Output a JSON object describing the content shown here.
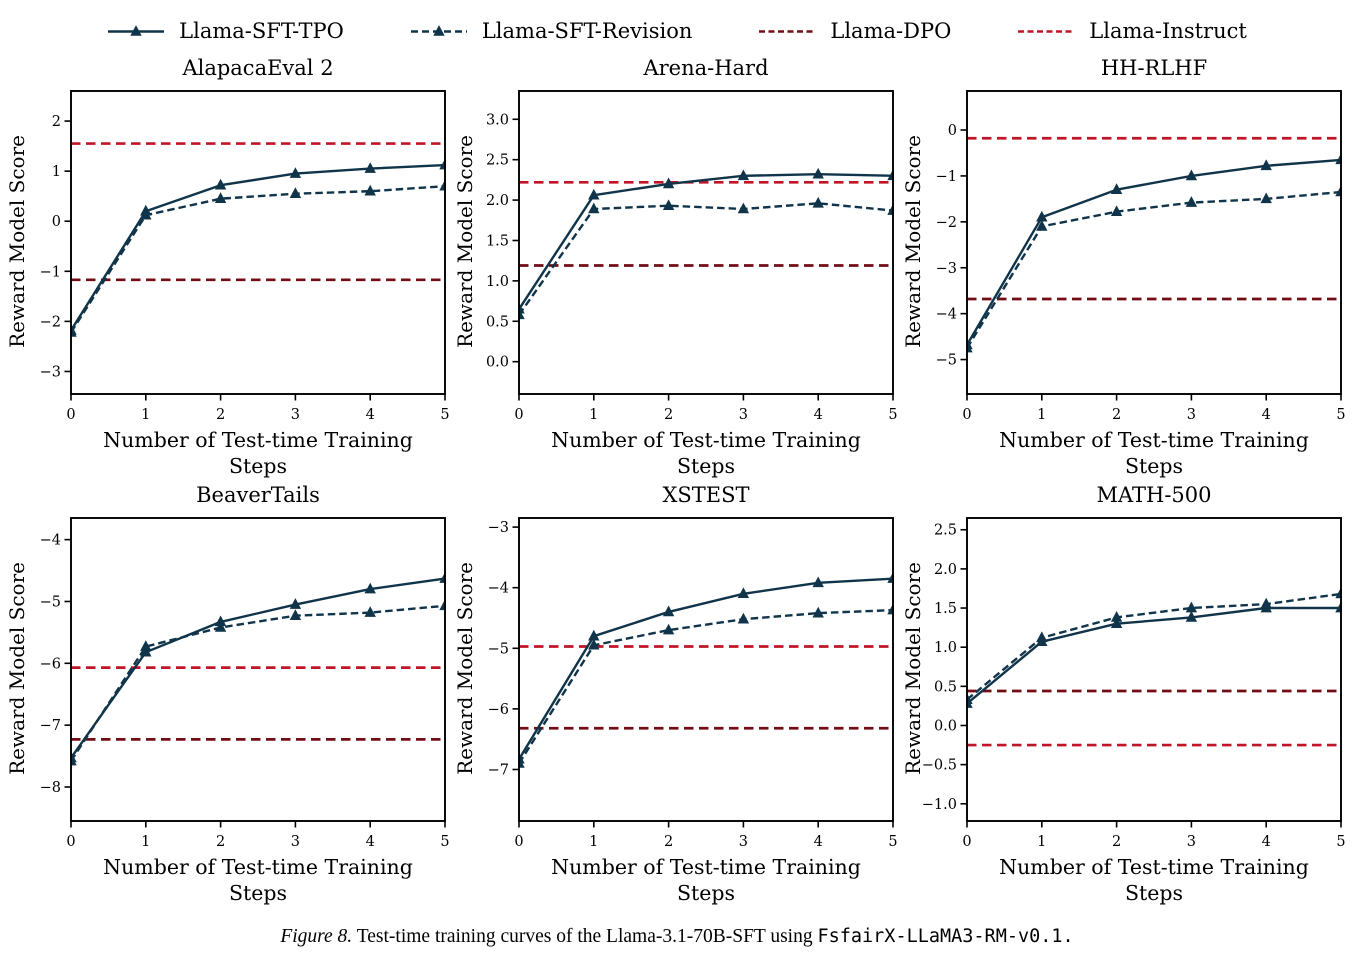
{
  "colors": {
    "navy": "#103449",
    "crimson": "#c01527",
    "maroon": "#730d15",
    "axis": "#000000",
    "background": "#ffffff"
  },
  "legend": {
    "items": [
      {
        "label": "Llama-SFT-TPO",
        "color": "navy",
        "dash": "solid",
        "marker": "triangle-up"
      },
      {
        "label": "Llama-SFT-Revision",
        "color": "navy",
        "dash": "dashed",
        "marker": "triangle-up"
      },
      {
        "label": "Llama-DPO",
        "color": "maroon",
        "dash": "dashed",
        "marker": "none"
      },
      {
        "label": "Llama-Instruct",
        "color": "crimson",
        "dash": "dashed",
        "marker": "none"
      }
    ]
  },
  "caption": {
    "label": "Figure 8.",
    "text": "Test-time training curves of the Llama-3.1-70B-SFT using",
    "code": "FsfairX-LLaMA3-RM-v0.1."
  },
  "chart_data": [
    {
      "type": "line",
      "title": "AlapacaEval 2",
      "xlabel": "Number of Test-time Training Steps",
      "ylabel": "Reward Model Score",
      "x": [
        0,
        1,
        2,
        3,
        4,
        5
      ],
      "xtick_labels": [
        "0",
        "1",
        "2",
        "3",
        "4",
        "5"
      ],
      "xlim": [
        0,
        5
      ],
      "ylim": [
        -3.45,
        2.6
      ],
      "ytick_vals": [
        2,
        1,
        0,
        -1,
        -2,
        -3
      ],
      "ytick_labels": [
        "2",
        "1",
        "0",
        "−1",
        "−2",
        "−3"
      ],
      "grid": false,
      "series": [
        {
          "name": "Llama-SFT-TPO",
          "color": "navy",
          "dash": "solid",
          "marker": "triangle-up",
          "values": [
            -2.18,
            0.2,
            0.72,
            0.95,
            1.05,
            1.12
          ]
        },
        {
          "name": "Llama-SFT-Revision",
          "color": "navy",
          "dash": "dashed",
          "marker": "triangle-up",
          "values": [
            -2.22,
            0.12,
            0.45,
            0.55,
            0.6,
            0.7
          ]
        }
      ],
      "hlines": [
        {
          "name": "Llama-Instruct",
          "color": "crimson",
          "y": 1.55
        },
        {
          "name": "Llama-DPO",
          "color": "maroon",
          "y": -1.17
        }
      ]
    },
    {
      "type": "line",
      "title": "Arena-Hard",
      "xlabel": "Number of Test-time Training Steps",
      "ylabel": "Reward Model Score",
      "x": [
        0,
        1,
        2,
        3,
        4,
        5
      ],
      "xtick_labels": [
        "0",
        "1",
        "2",
        "3",
        "4",
        "5"
      ],
      "xlim": [
        0,
        5
      ],
      "ylim": [
        -0.4,
        3.35
      ],
      "ytick_vals": [
        3.0,
        2.5,
        2.0,
        1.5,
        1.0,
        0.5,
        0.0
      ],
      "ytick_labels": [
        "3.0",
        "2.5",
        "2.0",
        "1.5",
        "1.0",
        "0.5",
        "0.0"
      ],
      "grid": false,
      "series": [
        {
          "name": "Llama-SFT-TPO",
          "color": "navy",
          "dash": "solid",
          "marker": "triangle-up",
          "values": [
            0.65,
            2.06,
            2.2,
            2.3,
            2.32,
            2.3
          ]
        },
        {
          "name": "Llama-SFT-Revision",
          "color": "navy",
          "dash": "dashed",
          "marker": "triangle-up",
          "values": [
            0.58,
            1.89,
            1.93,
            1.89,
            1.96,
            1.87
          ]
        }
      ],
      "hlines": [
        {
          "name": "Llama-Instruct",
          "color": "crimson",
          "y": 2.22
        },
        {
          "name": "Llama-DPO",
          "color": "maroon",
          "y": 1.19
        }
      ]
    },
    {
      "type": "line",
      "title": "HH-RLHF",
      "xlabel": "Number of Test-time Training Steps",
      "ylabel": "Reward Model Score",
      "x": [
        0,
        1,
        2,
        3,
        4,
        5
      ],
      "xtick_labels": [
        "0",
        "1",
        "2",
        "3",
        "4",
        "5"
      ],
      "xlim": [
        0,
        5
      ],
      "ylim": [
        -5.75,
        0.85
      ],
      "ytick_vals": [
        0,
        -1,
        -2,
        -3,
        -4,
        -5
      ],
      "ytick_labels": [
        "0",
        "−1",
        "−2",
        "−3",
        "−4",
        "−5"
      ],
      "grid": false,
      "series": [
        {
          "name": "Llama-SFT-TPO",
          "color": "navy",
          "dash": "solid",
          "marker": "triangle-up",
          "values": [
            -4.68,
            -1.9,
            -1.3,
            -1.0,
            -0.78,
            -0.65
          ]
        },
        {
          "name": "Llama-SFT-Revision",
          "color": "navy",
          "dash": "dashed",
          "marker": "triangle-up",
          "values": [
            -4.75,
            -2.1,
            -1.78,
            -1.58,
            -1.5,
            -1.35
          ]
        }
      ],
      "hlines": [
        {
          "name": "Llama-Instruct",
          "color": "crimson",
          "y": -0.18
        },
        {
          "name": "Llama-DPO",
          "color": "maroon",
          "y": -3.68
        }
      ]
    },
    {
      "type": "line",
      "title": "BeaverTails",
      "xlabel": "Number of Test-time Training Steps",
      "ylabel": "Reward Model Score",
      "x": [
        0,
        1,
        2,
        3,
        4,
        5
      ],
      "xtick_labels": [
        "0",
        "1",
        "2",
        "3",
        "4",
        "5"
      ],
      "xlim": [
        0,
        5
      ],
      "ylim": [
        -8.55,
        -3.65
      ],
      "ytick_vals": [
        -4,
        -5,
        -6,
        -7,
        -8
      ],
      "ytick_labels": [
        "−4",
        "−5",
        "−6",
        "−7",
        "−8"
      ],
      "grid": false,
      "series": [
        {
          "name": "Llama-SFT-TPO",
          "color": "navy",
          "dash": "solid",
          "marker": "triangle-up",
          "values": [
            -7.53,
            -5.82,
            -5.33,
            -5.05,
            -4.8,
            -4.63
          ]
        },
        {
          "name": "Llama-SFT-Revision",
          "color": "navy",
          "dash": "dashed",
          "marker": "triangle-up",
          "values": [
            -7.58,
            -5.73,
            -5.42,
            -5.23,
            -5.18,
            -5.07
          ]
        }
      ],
      "hlines": [
        {
          "name": "Llama-Instruct",
          "color": "crimson",
          "y": -6.07
        },
        {
          "name": "Llama-DPO",
          "color": "maroon",
          "y": -7.23
        }
      ]
    },
    {
      "type": "line",
      "title": "XSTEST",
      "xlabel": "Number of Test-time Training Steps",
      "ylabel": "Reward Model Score",
      "x": [
        0,
        1,
        2,
        3,
        4,
        5
      ],
      "xtick_labels": [
        "0",
        "1",
        "2",
        "3",
        "4",
        "5"
      ],
      "xlim": [
        0,
        5
      ],
      "ylim": [
        -7.85,
        -2.85
      ],
      "ytick_vals": [
        -3,
        -4,
        -5,
        -6,
        -7
      ],
      "ytick_labels": [
        "−3",
        "−4",
        "−5",
        "−6",
        "−7"
      ],
      "grid": false,
      "series": [
        {
          "name": "Llama-SFT-TPO",
          "color": "navy",
          "dash": "solid",
          "marker": "triangle-up",
          "values": [
            -6.83,
            -4.8,
            -4.4,
            -4.1,
            -3.92,
            -3.85
          ]
        },
        {
          "name": "Llama-SFT-Revision",
          "color": "navy",
          "dash": "dashed",
          "marker": "triangle-up",
          "values": [
            -6.9,
            -4.95,
            -4.7,
            -4.52,
            -4.42,
            -4.37
          ]
        }
      ],
      "hlines": [
        {
          "name": "Llama-Instruct",
          "color": "crimson",
          "y": -4.97
        },
        {
          "name": "Llama-DPO",
          "color": "maroon",
          "y": -6.32
        }
      ]
    },
    {
      "type": "line",
      "title": "MATH-500",
      "xlabel": "Number of Test-time Training Steps",
      "ylabel": "Reward Model Score",
      "x": [
        0,
        1,
        2,
        3,
        4,
        5
      ],
      "xtick_labels": [
        "0",
        "1",
        "2",
        "3",
        "4",
        "5"
      ],
      "xlim": [
        0,
        5
      ],
      "ylim": [
        -1.22,
        2.65
      ],
      "ytick_vals": [
        2.5,
        2.0,
        1.5,
        1.0,
        0.5,
        0.0,
        -0.5,
        -1.0
      ],
      "ytick_labels": [
        "2.5",
        "2.0",
        "1.5",
        "1.0",
        "0.5",
        "0.0",
        "−0.5",
        "−1.0"
      ],
      "grid": false,
      "series": [
        {
          "name": "Llama-SFT-TPO",
          "color": "navy",
          "dash": "solid",
          "marker": "triangle-up",
          "values": [
            0.28,
            1.07,
            1.3,
            1.38,
            1.5,
            1.5
          ]
        },
        {
          "name": "Llama-SFT-Revision",
          "color": "navy",
          "dash": "dashed",
          "marker": "triangle-up",
          "values": [
            0.33,
            1.12,
            1.38,
            1.5,
            1.55,
            1.68
          ]
        }
      ],
      "hlines": [
        {
          "name": "Llama-DPO",
          "color": "maroon",
          "y": 0.44
        },
        {
          "name": "Llama-Instruct",
          "color": "crimson",
          "y": -0.25
        }
      ]
    }
  ]
}
